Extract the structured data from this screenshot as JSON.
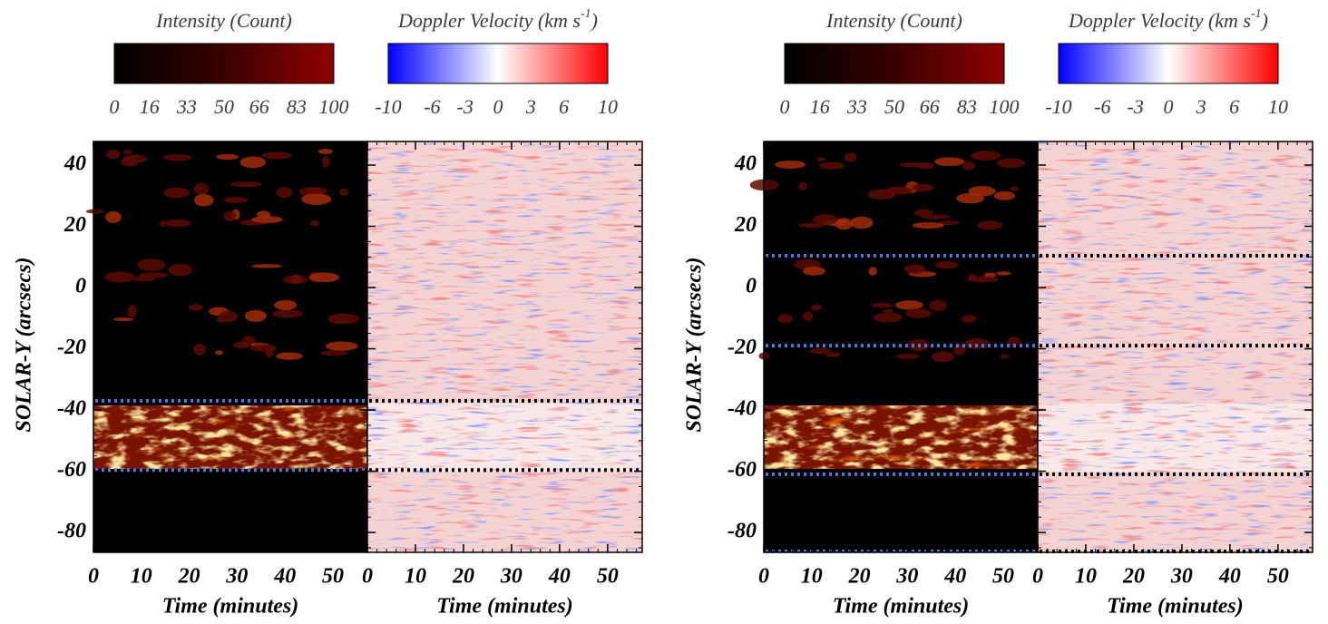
{
  "figures": [
    {
      "colorbars": [
        {
          "title": "Intensity (Count)",
          "lim": [
            0,
            100
          ],
          "ticks": [
            0,
            16,
            33,
            50,
            66,
            83,
            100
          ],
          "colors": [
            "#000000",
            "#3a0000",
            "#900000"
          ]
        },
        {
          "title": "Doppler Velocity (km s",
          "title_sup": "-1",
          "title_end": ")",
          "lim": [
            -10,
            10
          ],
          "ticks": [
            -10,
            -6,
            -3,
            0,
            3,
            6,
            10
          ],
          "colors": [
            "#0000ff",
            "#ffffff",
            "#ff0000"
          ]
        }
      ],
      "y_label": "SOLAR-Y (arcsecs)",
      "ylim": [
        -86.5,
        47.7
      ],
      "yticks": [
        40,
        20,
        0,
        -20,
        -40,
        -60,
        -80
      ],
      "panels": [
        {
          "kind": "intensity",
          "x_label": "Time (minutes)",
          "xlim": [
            0,
            57.2
          ],
          "xticks": [
            0,
            10,
            20,
            30,
            40,
            50
          ]
        },
        {
          "kind": "doppler",
          "x_label": "Time (minutes)",
          "xlim": [
            0,
            57.2
          ],
          "xticks": [
            0,
            10,
            20,
            30,
            40,
            50
          ]
        }
      ],
      "dotted_lines": [
        -37,
        -59.6
      ],
      "dotted_colors": [
        "#4a78dd",
        "#000000"
      ]
    },
    {
      "colorbars": [
        {
          "title": "Intensity (Count)",
          "lim": [
            0,
            100
          ],
          "ticks": [
            0,
            16,
            33,
            50,
            66,
            83,
            100
          ],
          "colors": [
            "#000000",
            "#3a0000",
            "#900000"
          ]
        },
        {
          "title": "Doppler Velocity (km s",
          "title_sup": "-1",
          "title_end": ")",
          "lim": [
            -10,
            10
          ],
          "ticks": [
            -10,
            -6,
            -3,
            0,
            3,
            6,
            10
          ],
          "colors": [
            "#0000ff",
            "#ffffff",
            "#ff0000"
          ]
        }
      ],
      "y_label": "SOLAR-Y (arcsecs)",
      "ylim": [
        -86.5,
        47.7
      ],
      "yticks": [
        40,
        20,
        0,
        -20,
        -40,
        -60,
        -80
      ],
      "panels": [
        {
          "kind": "intensity",
          "x_label": "Time (minutes)",
          "xlim": [
            0,
            57.2
          ],
          "xticks": [
            0,
            10,
            20,
            30,
            40,
            50
          ]
        },
        {
          "kind": "doppler",
          "x_label": "Time (minutes)",
          "xlim": [
            0,
            57.2
          ],
          "xticks": [
            0,
            10,
            20,
            30,
            40,
            50
          ]
        }
      ],
      "dotted_lines": [
        10.4,
        -19,
        -61,
        -86.2
      ],
      "dotted_colors": [
        "#4a78dd",
        "#000000"
      ]
    }
  ]
}
